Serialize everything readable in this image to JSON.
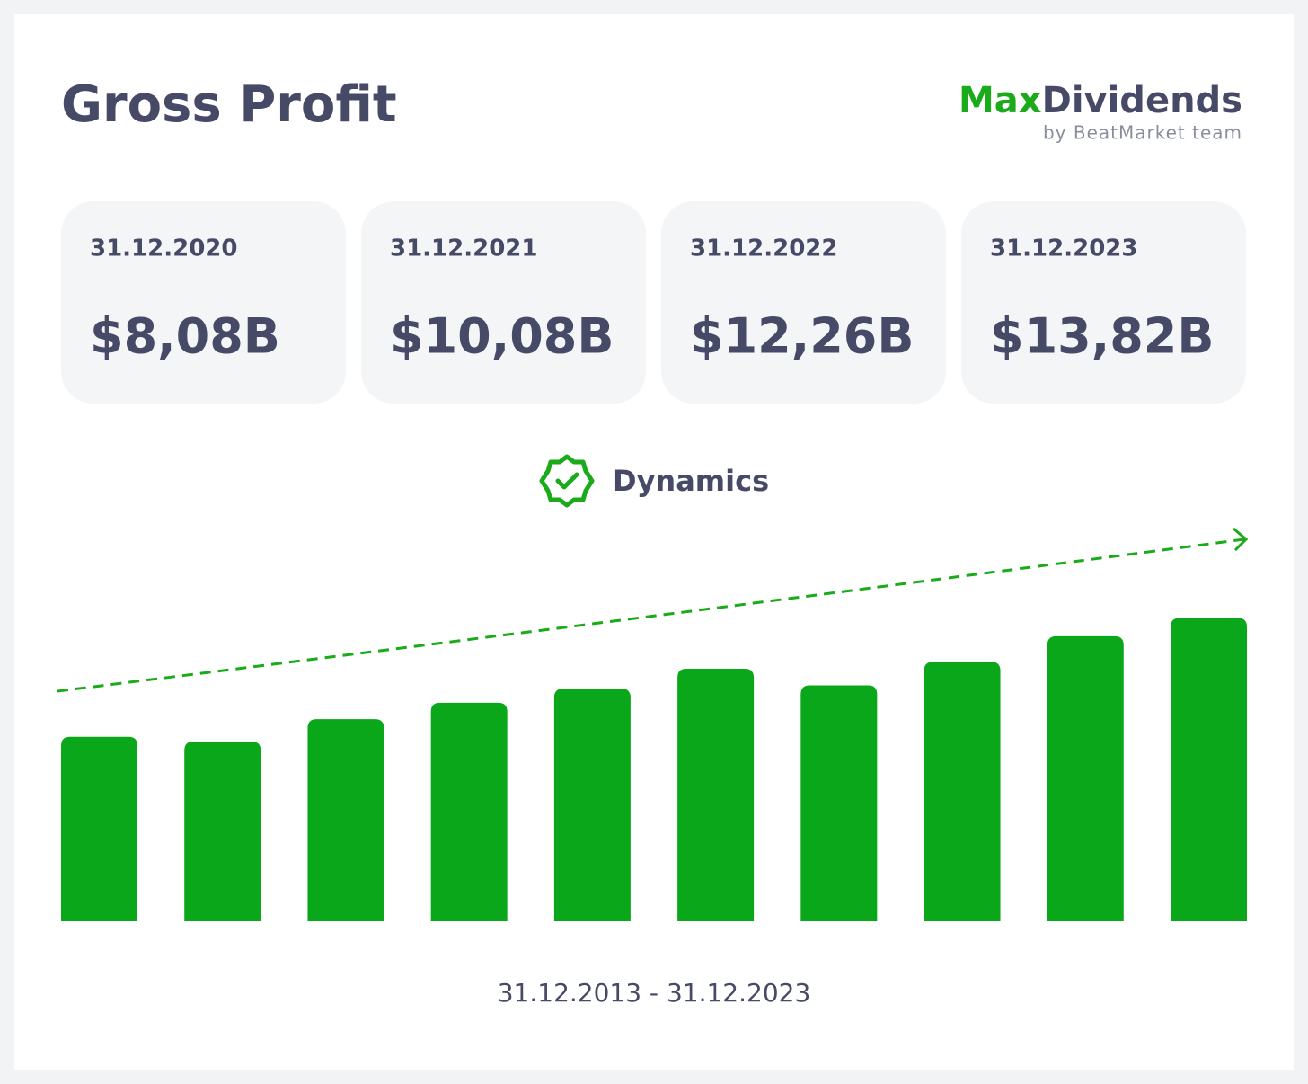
{
  "header": {
    "title": "Gross Profit"
  },
  "logo": {
    "brand_part1": "Max",
    "brand_part2": "Dividends",
    "tagline": "by BeatMarket team"
  },
  "cards": [
    {
      "date": "31.12.2020",
      "value": "$8,08B"
    },
    {
      "date": "31.12.2021",
      "value": "$10,08B"
    },
    {
      "date": "31.12.2022",
      "value": "$12,26B"
    },
    {
      "date": "31.12.2023",
      "value": "$13,82B"
    }
  ],
  "chart_data": {
    "type": "bar",
    "subtitle": "Dynamics",
    "x_label": "31.12.2013 - 31.12.2023",
    "categories": [
      null,
      null,
      null,
      null,
      null,
      null,
      null,
      null,
      null,
      null
    ],
    "values": [
      3.7,
      3.3,
      5.2,
      6.6,
      7.8,
      9.5,
      8.08,
      10.08,
      12.26,
      13.82
    ],
    "color": "#0ba71b",
    "ylim": [
      -12,
      16
    ]
  }
}
